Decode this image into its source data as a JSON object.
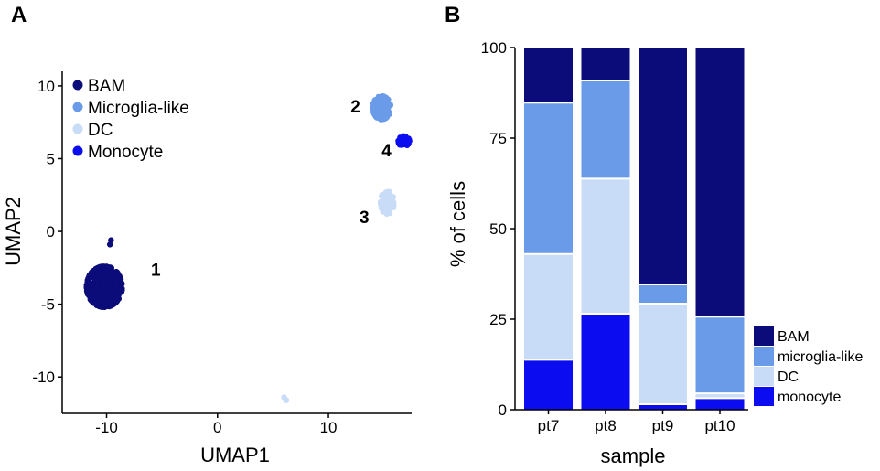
{
  "colors": {
    "BAM": "#0b0b7a",
    "Microglia-like": "#6a9be8",
    "DC": "#c8dcf7",
    "Monocyte": "#0c0cf0"
  },
  "chart_data": [
    {
      "panel": "A",
      "type": "scatter",
      "xlabel": "UMAP1",
      "ylabel": "UMAP2",
      "xlim": [
        -14,
        17.5
      ],
      "ylim": [
        -12.5,
        11
      ],
      "xticks": [
        -10,
        0,
        10
      ],
      "xtick_labels": [
        "-10",
        "0",
        "10"
      ],
      "yticks": [
        -10,
        -5,
        0,
        5,
        10
      ],
      "ytick_labels": [
        "-10",
        "-5",
        "0",
        "5",
        "10"
      ],
      "legend": {
        "position": "top-left",
        "entries": [
          {
            "label": "BAM",
            "key": "BAM"
          },
          {
            "label": "Microglia-like",
            "key": "Microglia-like"
          },
          {
            "label": "DC",
            "key": "DC"
          },
          {
            "label": "Monocyte",
            "key": "Monocyte"
          }
        ]
      },
      "clusters": [
        {
          "name": "BAM",
          "id": "1",
          "center": [
            -10.2,
            -3.8
          ],
          "spread": [
            1.6,
            1.4
          ],
          "n": 420,
          "label_at": [
            -6,
            -2.6
          ]
        },
        {
          "name": "Microglia-like",
          "id": "2",
          "center": [
            14.8,
            8.5
          ],
          "spread": [
            0.8,
            0.8
          ],
          "n": 160,
          "label_at": [
            12,
            8.6
          ]
        },
        {
          "name": "DC",
          "id": "3",
          "center": [
            15.3,
            2.0
          ],
          "spread": [
            0.6,
            0.8
          ],
          "n": 90,
          "label_at": [
            12.8,
            1
          ]
        },
        {
          "name": "Monocyte",
          "id": "4",
          "center": [
            16.8,
            6.2
          ],
          "spread": [
            0.5,
            0.35
          ],
          "n": 45,
          "label_at": [
            14.8,
            5.6
          ]
        }
      ],
      "outliers": [
        {
          "cluster": "DC",
          "x": 6.2,
          "y": -11.6
        },
        {
          "cluster": "DC",
          "x": 6.0,
          "y": -11.4
        },
        {
          "cluster": "BAM",
          "x": -9.6,
          "y": -0.6
        },
        {
          "cluster": "BAM",
          "x": -9.7,
          "y": -0.9
        }
      ]
    },
    {
      "panel": "B",
      "type": "bar",
      "stacked": true,
      "xlabel": "sample",
      "ylabel": "% of cells",
      "ylim": [
        0,
        100
      ],
      "yticks": [
        0,
        25,
        50,
        75,
        100
      ],
      "ytick_labels": [
        "0",
        "25",
        "50",
        "75",
        "100"
      ],
      "categories": [
        "pt7",
        "pt8",
        "pt9",
        "pt10"
      ],
      "series": [
        {
          "name": "monocyte",
          "key": "Monocyte",
          "values": [
            13.8,
            26.5,
            1.5,
            3.2
          ]
        },
        {
          "name": "DC",
          "key": "DC",
          "values": [
            29.2,
            37.3,
            27.8,
            1.3
          ]
        },
        {
          "name": "microglia-like",
          "key": "Microglia-like",
          "values": [
            41.8,
            27.1,
            5.3,
            21.2
          ]
        },
        {
          "name": "BAM",
          "key": "BAM",
          "values": [
            15.2,
            9.1,
            65.4,
            74.3
          ]
        }
      ],
      "legend": {
        "position": "right",
        "entries": [
          {
            "label": "BAM",
            "key": "BAM"
          },
          {
            "label": "microglia-like",
            "key": "Microglia-like"
          },
          {
            "label": "DC",
            "key": "DC"
          },
          {
            "label": "monocyte",
            "key": "Monocyte"
          }
        ]
      }
    }
  ],
  "labels": {
    "panel_a": "A",
    "panel_b": "B"
  }
}
